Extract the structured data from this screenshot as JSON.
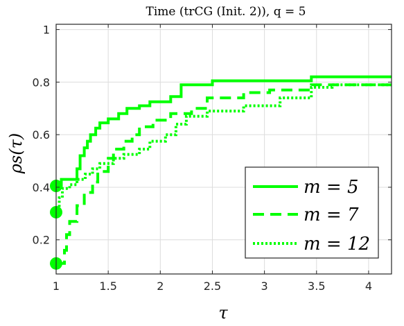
{
  "chart_data": {
    "type": "line",
    "title": "Time (trCG (Init. 2)), q = 5",
    "xlabel": "τ",
    "ylabel": "ρs(τ)",
    "xlim": [
      1,
      4.22
    ],
    "ylim": [
      0.07,
      1.02
    ],
    "xticks": [
      "1",
      "1.5",
      "2",
      "2.5",
      "3",
      "3.5",
      "4"
    ],
    "xtick_values": [
      1,
      1.5,
      2,
      2.5,
      3,
      3.5,
      4
    ],
    "yticks": [
      "0.2",
      "0.4",
      "0.6",
      "0.8",
      "1"
    ],
    "ytick_values": [
      0.2,
      0.4,
      0.6,
      0.8,
      1.0
    ],
    "grid": true,
    "legend_position": "bottom-right",
    "colors": {
      "series": "#00ff00",
      "grid": "#dcdcdc",
      "axis": "#262626"
    },
    "series": [
      {
        "name": "m = 5",
        "style": "solid",
        "points": [
          [
            1,
            0.405
          ],
          [
            1.05,
            0.405
          ],
          [
            1.05,
            0.43
          ],
          [
            1.2,
            0.43
          ],
          [
            1.2,
            0.47
          ],
          [
            1.23,
            0.47
          ],
          [
            1.23,
            0.52
          ],
          [
            1.27,
            0.52
          ],
          [
            1.27,
            0.55
          ],
          [
            1.3,
            0.55
          ],
          [
            1.3,
            0.575
          ],
          [
            1.33,
            0.575
          ],
          [
            1.33,
            0.6
          ],
          [
            1.38,
            0.6
          ],
          [
            1.38,
            0.625
          ],
          [
            1.42,
            0.625
          ],
          [
            1.42,
            0.645
          ],
          [
            1.5,
            0.645
          ],
          [
            1.5,
            0.66
          ],
          [
            1.6,
            0.66
          ],
          [
            1.6,
            0.68
          ],
          [
            1.68,
            0.68
          ],
          [
            1.68,
            0.7
          ],
          [
            1.8,
            0.7
          ],
          [
            1.8,
            0.71
          ],
          [
            1.9,
            0.71
          ],
          [
            1.9,
            0.725
          ],
          [
            2.1,
            0.725
          ],
          [
            2.1,
            0.745
          ],
          [
            2.2,
            0.745
          ],
          [
            2.2,
            0.79
          ],
          [
            2.5,
            0.79
          ],
          [
            2.5,
            0.805
          ],
          [
            3.45,
            0.805
          ],
          [
            3.45,
            0.82
          ],
          [
            4.22,
            0.82
          ]
        ]
      },
      {
        "name": "m = 7",
        "style": "dashed",
        "points": [
          [
            1,
            0.11
          ],
          [
            1.08,
            0.11
          ],
          [
            1.08,
            0.16
          ],
          [
            1.1,
            0.16
          ],
          [
            1.1,
            0.22
          ],
          [
            1.13,
            0.22
          ],
          [
            1.13,
            0.27
          ],
          [
            1.2,
            0.27
          ],
          [
            1.2,
            0.33
          ],
          [
            1.27,
            0.33
          ],
          [
            1.27,
            0.38
          ],
          [
            1.35,
            0.38
          ],
          [
            1.35,
            0.42
          ],
          [
            1.4,
            0.42
          ],
          [
            1.4,
            0.46
          ],
          [
            1.5,
            0.46
          ],
          [
            1.5,
            0.51
          ],
          [
            1.55,
            0.51
          ],
          [
            1.55,
            0.545
          ],
          [
            1.65,
            0.545
          ],
          [
            1.65,
            0.575
          ],
          [
            1.73,
            0.575
          ],
          [
            1.73,
            0.6
          ],
          [
            1.8,
            0.6
          ],
          [
            1.8,
            0.63
          ],
          [
            1.93,
            0.63
          ],
          [
            1.93,
            0.655
          ],
          [
            2.1,
            0.655
          ],
          [
            2.1,
            0.68
          ],
          [
            2.3,
            0.68
          ],
          [
            2.3,
            0.7
          ],
          [
            2.45,
            0.7
          ],
          [
            2.45,
            0.74
          ],
          [
            2.8,
            0.74
          ],
          [
            2.8,
            0.76
          ],
          [
            3.05,
            0.76
          ],
          [
            3.05,
            0.77
          ],
          [
            3.45,
            0.77
          ],
          [
            3.45,
            0.79
          ],
          [
            4.22,
            0.79
          ]
        ]
      },
      {
        "name": "m = 12",
        "style": "dotted",
        "points": [
          [
            1,
            0.305
          ],
          [
            1.03,
            0.305
          ],
          [
            1.03,
            0.36
          ],
          [
            1.06,
            0.36
          ],
          [
            1.06,
            0.395
          ],
          [
            1.13,
            0.395
          ],
          [
            1.13,
            0.41
          ],
          [
            1.2,
            0.41
          ],
          [
            1.2,
            0.43
          ],
          [
            1.28,
            0.43
          ],
          [
            1.28,
            0.45
          ],
          [
            1.35,
            0.45
          ],
          [
            1.35,
            0.47
          ],
          [
            1.42,
            0.47
          ],
          [
            1.42,
            0.49
          ],
          [
            1.55,
            0.49
          ],
          [
            1.55,
            0.51
          ],
          [
            1.65,
            0.51
          ],
          [
            1.65,
            0.525
          ],
          [
            1.8,
            0.525
          ],
          [
            1.8,
            0.545
          ],
          [
            1.9,
            0.545
          ],
          [
            1.9,
            0.575
          ],
          [
            2.05,
            0.575
          ],
          [
            2.05,
            0.6
          ],
          [
            2.15,
            0.6
          ],
          [
            2.15,
            0.64
          ],
          [
            2.25,
            0.64
          ],
          [
            2.25,
            0.67
          ],
          [
            2.45,
            0.67
          ],
          [
            2.45,
            0.69
          ],
          [
            2.8,
            0.69
          ],
          [
            2.8,
            0.71
          ],
          [
            3.15,
            0.71
          ],
          [
            3.15,
            0.74
          ],
          [
            3.45,
            0.74
          ],
          [
            3.45,
            0.78
          ],
          [
            3.65,
            0.78
          ],
          [
            3.65,
            0.79
          ],
          [
            4.22,
            0.79
          ]
        ]
      }
    ],
    "markers": [
      {
        "x": 1,
        "y": 0.405
      },
      {
        "x": 1,
        "y": 0.305
      },
      {
        "x": 1,
        "y": 0.11
      }
    ],
    "legend": [
      "m = 5",
      "m = 7",
      "m = 12"
    ]
  }
}
